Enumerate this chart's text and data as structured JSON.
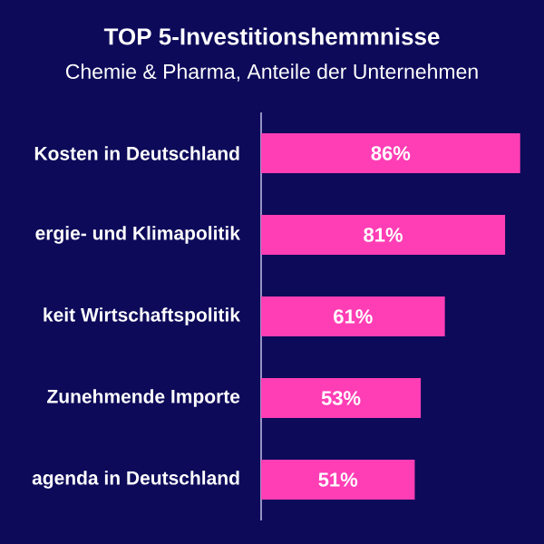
{
  "chart_data": {
    "type": "bar",
    "orientation": "horizontal",
    "title": "TOP 5-Investitionshemmnisse",
    "subtitle": "Chemie & Pharma, Anteile der Unternehmen",
    "categories": [
      "Kosten in Deutschland",
      "ergie- und Klimapolitik",
      "keit Wirtschaftspolitik",
      "Zunehmende Importe",
      "agenda in Deutschland"
    ],
    "values": [
      86,
      81,
      61,
      53,
      51
    ],
    "value_labels": [
      "86%",
      "81%",
      "61%",
      "53%",
      "51%"
    ],
    "color": "#ff3eb5"
  }
}
